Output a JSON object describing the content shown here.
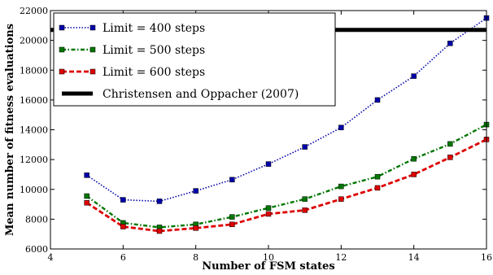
{
  "chart_data": {
    "type": "line",
    "xlabel": "Number of FSM states",
    "ylabel": "Mean number of fitness evaluations",
    "xlim": [
      4,
      16
    ],
    "ylim": [
      6000,
      22000
    ],
    "x_ticks": [
      4,
      6,
      8,
      10,
      12,
      14,
      16
    ],
    "y_ticks": [
      6000,
      8000,
      10000,
      12000,
      14000,
      16000,
      18000,
      20000,
      22000
    ],
    "grid": false,
    "legend_position": "top-left",
    "series": [
      {
        "name": "Limit = 400 steps",
        "color": "#0000aa",
        "line_style": "dotted",
        "marker": "square",
        "x": [
          5,
          6,
          7,
          8,
          9,
          10,
          11,
          12,
          13,
          14,
          15,
          16
        ],
        "y": [
          10950,
          9300,
          9200,
          9900,
          10650,
          11700,
          12850,
          14150,
          16000,
          17600,
          19800,
          21500
        ]
      },
      {
        "name": "Limit = 500 steps",
        "color": "#007700",
        "line_style": "dashdot",
        "marker": "square",
        "x": [
          5,
          6,
          7,
          8,
          9,
          10,
          11,
          12,
          13,
          14,
          15,
          16
        ],
        "y": [
          9550,
          7750,
          7450,
          7650,
          8150,
          8750,
          9350,
          10200,
          10850,
          12050,
          13050,
          14350
        ]
      },
      {
        "name": "Limit = 600 steps",
        "color": "#dd0000",
        "line_style": "dashed",
        "marker": "square",
        "x": [
          5,
          6,
          7,
          8,
          9,
          10,
          11,
          12,
          13,
          14,
          15,
          16
        ],
        "y": [
          9100,
          7500,
          7200,
          7400,
          7650,
          8350,
          8600,
          9350,
          10100,
          11000,
          12150,
          13350
        ]
      },
      {
        "name": "Christensen and Oppacher (2007)",
        "color": "#000000",
        "line_style": "solid-thick",
        "marker": "none",
        "x": [
          4,
          16
        ],
        "y": [
          20700,
          20700
        ]
      }
    ]
  }
}
